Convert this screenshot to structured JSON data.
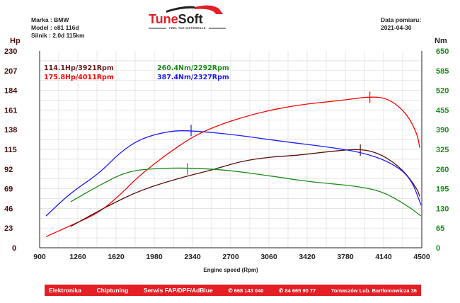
{
  "header": {
    "brand_line": "Marka : BMW",
    "model_line": "Model : e81 116d",
    "engine_line": "Silnik  : 2.0d 115km",
    "date_label": "Data pomiaru:",
    "date_value": "2021-04-30",
    "logo_text": "TuneSoft",
    "logo_tagline": "FEEL THE DIFFERENCE"
  },
  "chart_data": {
    "type": "line",
    "xlabel": "Engine speed (Rpm)",
    "ylabel_left": "Hp",
    "ylabel_right": "Nm",
    "xlim": [
      900,
      4500
    ],
    "ylim_left": [
      0,
      230
    ],
    "ylim_right": [
      0,
      650
    ],
    "x_ticks": [
      "900",
      "1260",
      "1620",
      "1980",
      "2340",
      "2700",
      "3060",
      "3420",
      "3780",
      "4140",
      "4500"
    ],
    "y_ticks_left": [
      "0",
      "23",
      "46",
      "69",
      "92",
      "115",
      "138",
      "161",
      "184",
      "207",
      "230"
    ],
    "y_ticks_right": [
      "0",
      "65",
      "130",
      "195",
      "260",
      "325",
      "390",
      "455",
      "520",
      "585",
      "650"
    ],
    "grid": true,
    "annotations": [
      {
        "text": "114.1Hp/3921Rpm",
        "color": "#6b1a1a"
      },
      {
        "text": "175.8Hp/4011Rpm",
        "color": "#ff0000"
      },
      {
        "text": "260.4Nm/2292Rpm",
        "color": "#1a8a1a"
      },
      {
        "text": "387.4Nm/2327Rpm",
        "color": "#1a1aff"
      }
    ],
    "series": [
      {
        "axis": "left",
        "color": "#ff0000",
        "peak": [
          4011,
          175.8
        ],
        "points": [
          [
            960,
            13
          ],
          [
            1193,
            26
          ],
          [
            1460,
            41
          ],
          [
            1660,
            62
          ],
          [
            1860,
            87
          ],
          [
            2260,
            124
          ],
          [
            2527,
            141
          ],
          [
            2927,
            157
          ],
          [
            3327,
            167
          ],
          [
            3727,
            172
          ],
          [
            4027,
            177
          ],
          [
            4193,
            174
          ],
          [
            4360,
            157
          ],
          [
            4460,
            132
          ],
          [
            4480,
            117
          ]
        ]
      },
      {
        "axis": "left",
        "color": "#5a1010",
        "peak": [
          3921,
          114.1
        ],
        "points": [
          [
            1193,
            25
          ],
          [
            1527,
            48
          ],
          [
            1860,
            68
          ],
          [
            2260,
            83
          ],
          [
            2527,
            91
          ],
          [
            2793,
            101
          ],
          [
            3060,
            106
          ],
          [
            3327,
            108
          ],
          [
            3593,
            112
          ],
          [
            3927,
            116
          ],
          [
            4127,
            109
          ],
          [
            4327,
            91
          ],
          [
            4460,
            68
          ],
          [
            4480,
            60
          ]
        ]
      },
      {
        "axis": "right",
        "color": "#1a1aff",
        "peak": [
          2327,
          387.4
        ],
        "points": [
          [
            960,
            105
          ],
          [
            1193,
            182
          ],
          [
            1460,
            245
          ],
          [
            1660,
            316
          ],
          [
            1860,
            362
          ],
          [
            2127,
            386
          ],
          [
            2327,
            387
          ],
          [
            2727,
            374
          ],
          [
            3193,
            351
          ],
          [
            3593,
            334
          ],
          [
            3927,
            316
          ],
          [
            4193,
            285
          ],
          [
            4393,
            234
          ],
          [
            4493,
            141
          ]
        ]
      },
      {
        "axis": "right",
        "color": "#1a8a1a",
        "peak": [
          2292,
          260.4
        ],
        "points": [
          [
            1193,
            152
          ],
          [
            1460,
            206
          ],
          [
            1727,
            253
          ],
          [
            1993,
            262
          ],
          [
            2293,
            264
          ],
          [
            2660,
            257
          ],
          [
            3060,
            238
          ],
          [
            3460,
            217
          ],
          [
            3860,
            205
          ],
          [
            4127,
            187
          ],
          [
            4360,
            140
          ],
          [
            4493,
            105
          ]
        ]
      }
    ]
  },
  "footer": {
    "items": [
      "Elektronika",
      "Chiptuning",
      "Serwis FAP/DPF/AdBlue",
      "✆ 668 143 040",
      "✆ 84 665 90 77",
      "Tomaszów Lub. Bartłomowicza 36"
    ]
  }
}
